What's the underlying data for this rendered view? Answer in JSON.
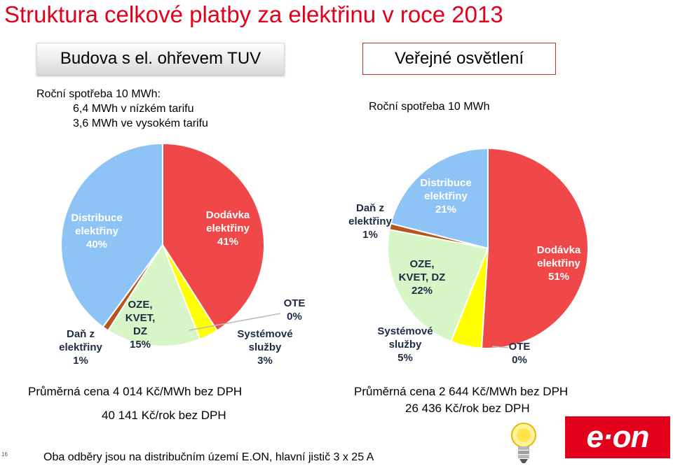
{
  "title": "Struktura celkové platby za elektřinu v roce 2013",
  "left": {
    "heading": "Budova s el. ohřevem TUV",
    "consumption": [
      "Roční spotřeba 10 MWh:",
      "6,4 MWh v nízkém tarifu",
      "3,6 MWh ve vysokém tarifu"
    ],
    "price_line1": "Průměrná cena 4 014 Kč/MWh bez DPH",
    "price_line2": "40 141 Kč/rok bez DPH"
  },
  "right": {
    "heading": "Veřejné osvětlení",
    "consumption": [
      "Roční spotřeba 10 MWh"
    ],
    "price_line1": "Průměrná cena 2 644 Kč/MWh bez DPH",
    "price_line2": "26 436 Kč/rok bez DPH"
  },
  "footer": "Oba odběry jsou na distribučním území E.ON, hlavní jistič 3 x 25 A",
  "page_number": "16",
  "logo_text": "e·on",
  "colors": {
    "title": "#e2001a",
    "dodavka": "#f04848",
    "distribuce": "#8ec4f5",
    "oze": "#d7f5c6",
    "systemove": "#ffff00",
    "dan": "#b5571c",
    "ote": "#c8c8c8",
    "logo": "#e2001a"
  },
  "chart_data": [
    {
      "type": "pie",
      "slices": [
        {
          "lines": [
            "Dodávka",
            "elektřiny",
            "41%"
          ],
          "value": 41,
          "color": "dodavka"
        },
        {
          "lines": [
            "OTE",
            "0%"
          ],
          "value": 0,
          "color": "ote"
        },
        {
          "lines": [
            "Systémové",
            "služby",
            "3%"
          ],
          "value": 3,
          "color": "systemove"
        },
        {
          "lines": [
            "OZE,",
            "KVET,",
            "DZ",
            "15%"
          ],
          "value": 15,
          "color": "oze"
        },
        {
          "lines": [
            "Daň z",
            "elektřiny",
            "1%"
          ],
          "value": 1,
          "color": "dan"
        },
        {
          "lines": [
            "Distribuce",
            "elektřiny",
            "40%"
          ],
          "value": 40,
          "color": "distribuce"
        }
      ]
    },
    {
      "type": "pie",
      "slices": [
        {
          "lines": [
            "Dodávka",
            "elektřiny",
            "51%"
          ],
          "value": 51,
          "color": "dodavka"
        },
        {
          "lines": [
            "OTE",
            "0%"
          ],
          "value": 0,
          "color": "ote"
        },
        {
          "lines": [
            "Systémové",
            "služby",
            "5%"
          ],
          "value": 5,
          "color": "systemove"
        },
        {
          "lines": [
            "OZE,",
            "KVET, DZ",
            "22%"
          ],
          "value": 22,
          "color": "oze"
        },
        {
          "lines": [
            "Daň z",
            "elektřiny",
            "1%"
          ],
          "value": 1,
          "color": "dan"
        },
        {
          "lines": [
            "Distribuce",
            "elektřiny",
            "21%"
          ],
          "value": 21,
          "color": "distribuce"
        }
      ]
    }
  ]
}
